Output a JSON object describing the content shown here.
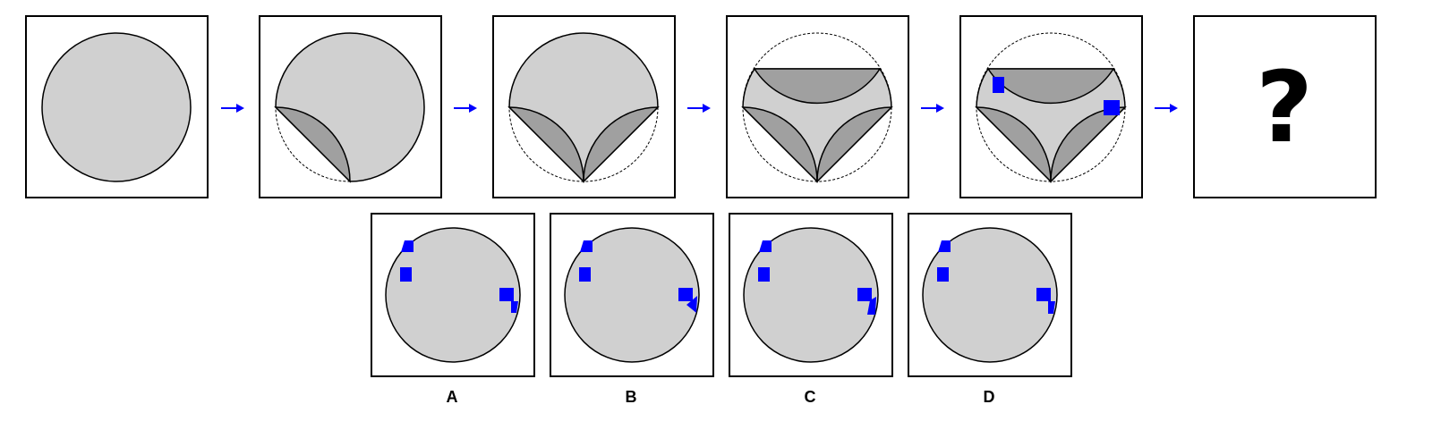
{
  "puzzle": {
    "question_mark": "?",
    "options": [
      {
        "label": "A"
      },
      {
        "label": "B"
      },
      {
        "label": "C"
      },
      {
        "label": "D"
      }
    ]
  },
  "colors": {
    "fill_light": "#d0d0d0",
    "fill_dark": "#a0a0a0",
    "square_blue": "#0000ff",
    "arrow_blue": "#0000ff",
    "stroke": "#000000"
  },
  "icons": [
    "arrow-right-icon"
  ]
}
